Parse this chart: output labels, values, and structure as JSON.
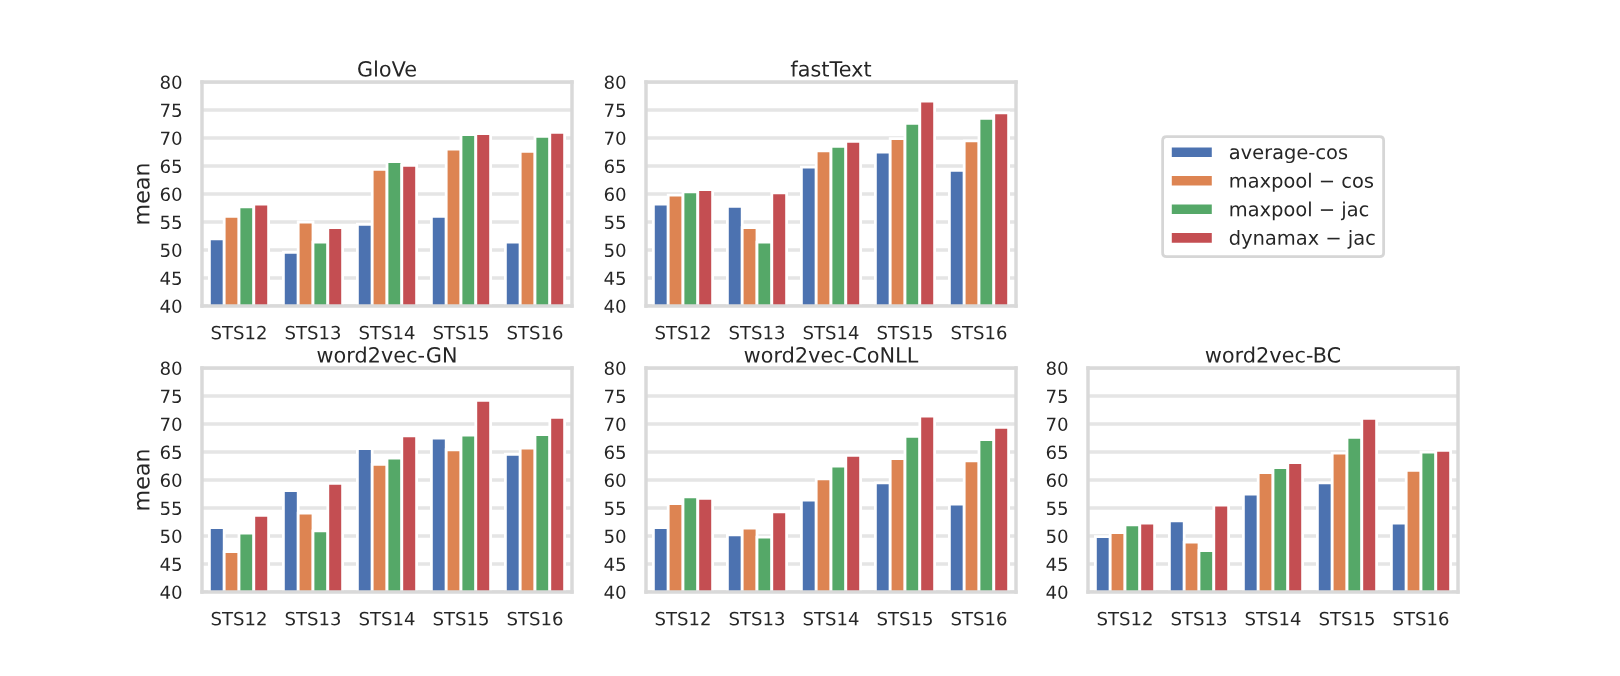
{
  "chart_data": [
    {
      "type": "bar",
      "title": "GloVe",
      "ylabel": "mean",
      "categories": [
        "STS12",
        "STS13",
        "STS14",
        "STS15",
        "STS16"
      ],
      "ylim": [
        40,
        80
      ],
      "yticks": [
        40,
        45,
        50,
        55,
        60,
        65,
        70,
        75,
        80
      ],
      "grid": "y",
      "legend": false,
      "series": [
        {
          "color": "#4c72b0",
          "values": [
            52,
            49.6,
            54.6,
            56,
            51.4
          ]
        },
        {
          "color": "#dd8452",
          "values": [
            56,
            55,
            64.4,
            68,
            67.6
          ]
        },
        {
          "color": "#55a868",
          "values": [
            57.7,
            51.4,
            65.8,
            70.6,
            70.3
          ]
        },
        {
          "color": "#c44e52",
          "values": [
            58.2,
            54,
            65.1,
            70.8,
            71
          ]
        }
      ]
    },
    {
      "type": "bar",
      "title": "fastText",
      "categories": [
        "STS12",
        "STS13",
        "STS14",
        "STS15",
        "STS16"
      ],
      "ylim": [
        40,
        80
      ],
      "yticks": [
        40,
        45,
        50,
        55,
        60,
        65,
        70,
        75,
        80
      ],
      "grid": "y",
      "legend": "right",
      "series": [
        {
          "name": "average-cos",
          "color": "#4c72b0",
          "values": [
            58.2,
            57.8,
            64.8,
            67.5,
            64.2
          ]
        },
        {
          "name": "maxpool − cos",
          "color": "#dd8452",
          "values": [
            59.8,
            54,
            67.7,
            69.9,
            69.5
          ]
        },
        {
          "name": "maxpool − jac",
          "color": "#55a868",
          "values": [
            60.4,
            51.4,
            68.5,
            72.6,
            73.5
          ]
        },
        {
          "name": "dynamax − jac",
          "color": "#c44e52",
          "values": [
            60.8,
            60.2,
            69.4,
            76.6,
            74.5
          ]
        }
      ]
    },
    {
      "type": "bar",
      "title": "word2vec-GN",
      "ylabel": "mean",
      "categories": [
        "STS12",
        "STS13",
        "STS14",
        "STS15",
        "STS16"
      ],
      "ylim": [
        40,
        80
      ],
      "yticks": [
        40,
        45,
        50,
        55,
        60,
        65,
        70,
        75,
        80
      ],
      "grid": "y",
      "legend": false,
      "series": [
        {
          "color": "#4c72b0",
          "values": [
            51.5,
            58.1,
            65.6,
            67.5,
            64.6
          ]
        },
        {
          "color": "#dd8452",
          "values": [
            47.2,
            54.1,
            62.8,
            65.4,
            65.7
          ]
        },
        {
          "color": "#55a868",
          "values": [
            50.5,
            50.9,
            63.9,
            68,
            68.1
          ]
        },
        {
          "color": "#c44e52",
          "values": [
            53.7,
            59.4,
            67.9,
            74.2,
            71.2
          ]
        }
      ]
    },
    {
      "type": "bar",
      "title": "word2vec-CoNLL",
      "categories": [
        "STS12",
        "STS13",
        "STS14",
        "STS15",
        "STS16"
      ],
      "ylim": [
        40,
        80
      ],
      "yticks": [
        40,
        45,
        50,
        55,
        60,
        65,
        70,
        75,
        80
      ],
      "grid": "y",
      "legend": false,
      "series": [
        {
          "color": "#4c72b0",
          "values": [
            51.5,
            50.2,
            56.4,
            59.5,
            55.7
          ]
        },
        {
          "color": "#dd8452",
          "values": [
            55.8,
            51.4,
            60.2,
            63.8,
            63.4
          ]
        },
        {
          "color": "#55a868",
          "values": [
            57,
            49.8,
            62.5,
            67.8,
            67.2
          ]
        },
        {
          "color": "#c44e52",
          "values": [
            56.7,
            54.3,
            64.4,
            71.4,
            69.4
          ]
        }
      ]
    },
    {
      "type": "bar",
      "title": "word2vec-BC",
      "categories": [
        "STS12",
        "STS13",
        "STS14",
        "STS15",
        "STS16"
      ],
      "ylim": [
        40,
        80
      ],
      "yticks": [
        40,
        45,
        50,
        55,
        60,
        65,
        70,
        75,
        80
      ],
      "grid": "y",
      "legend": false,
      "series": [
        {
          "color": "#4c72b0",
          "values": [
            49.9,
            52.7,
            57.5,
            59.5,
            52.3
          ]
        },
        {
          "color": "#dd8452",
          "values": [
            50.6,
            48.9,
            61.3,
            64.8,
            61.7
          ]
        },
        {
          "color": "#55a868",
          "values": [
            52,
            47.4,
            62.2,
            67.6,
            65
          ]
        },
        {
          "color": "#c44e52",
          "values": [
            52.3,
            55.5,
            63.1,
            71,
            65.3
          ]
        }
      ]
    }
  ]
}
